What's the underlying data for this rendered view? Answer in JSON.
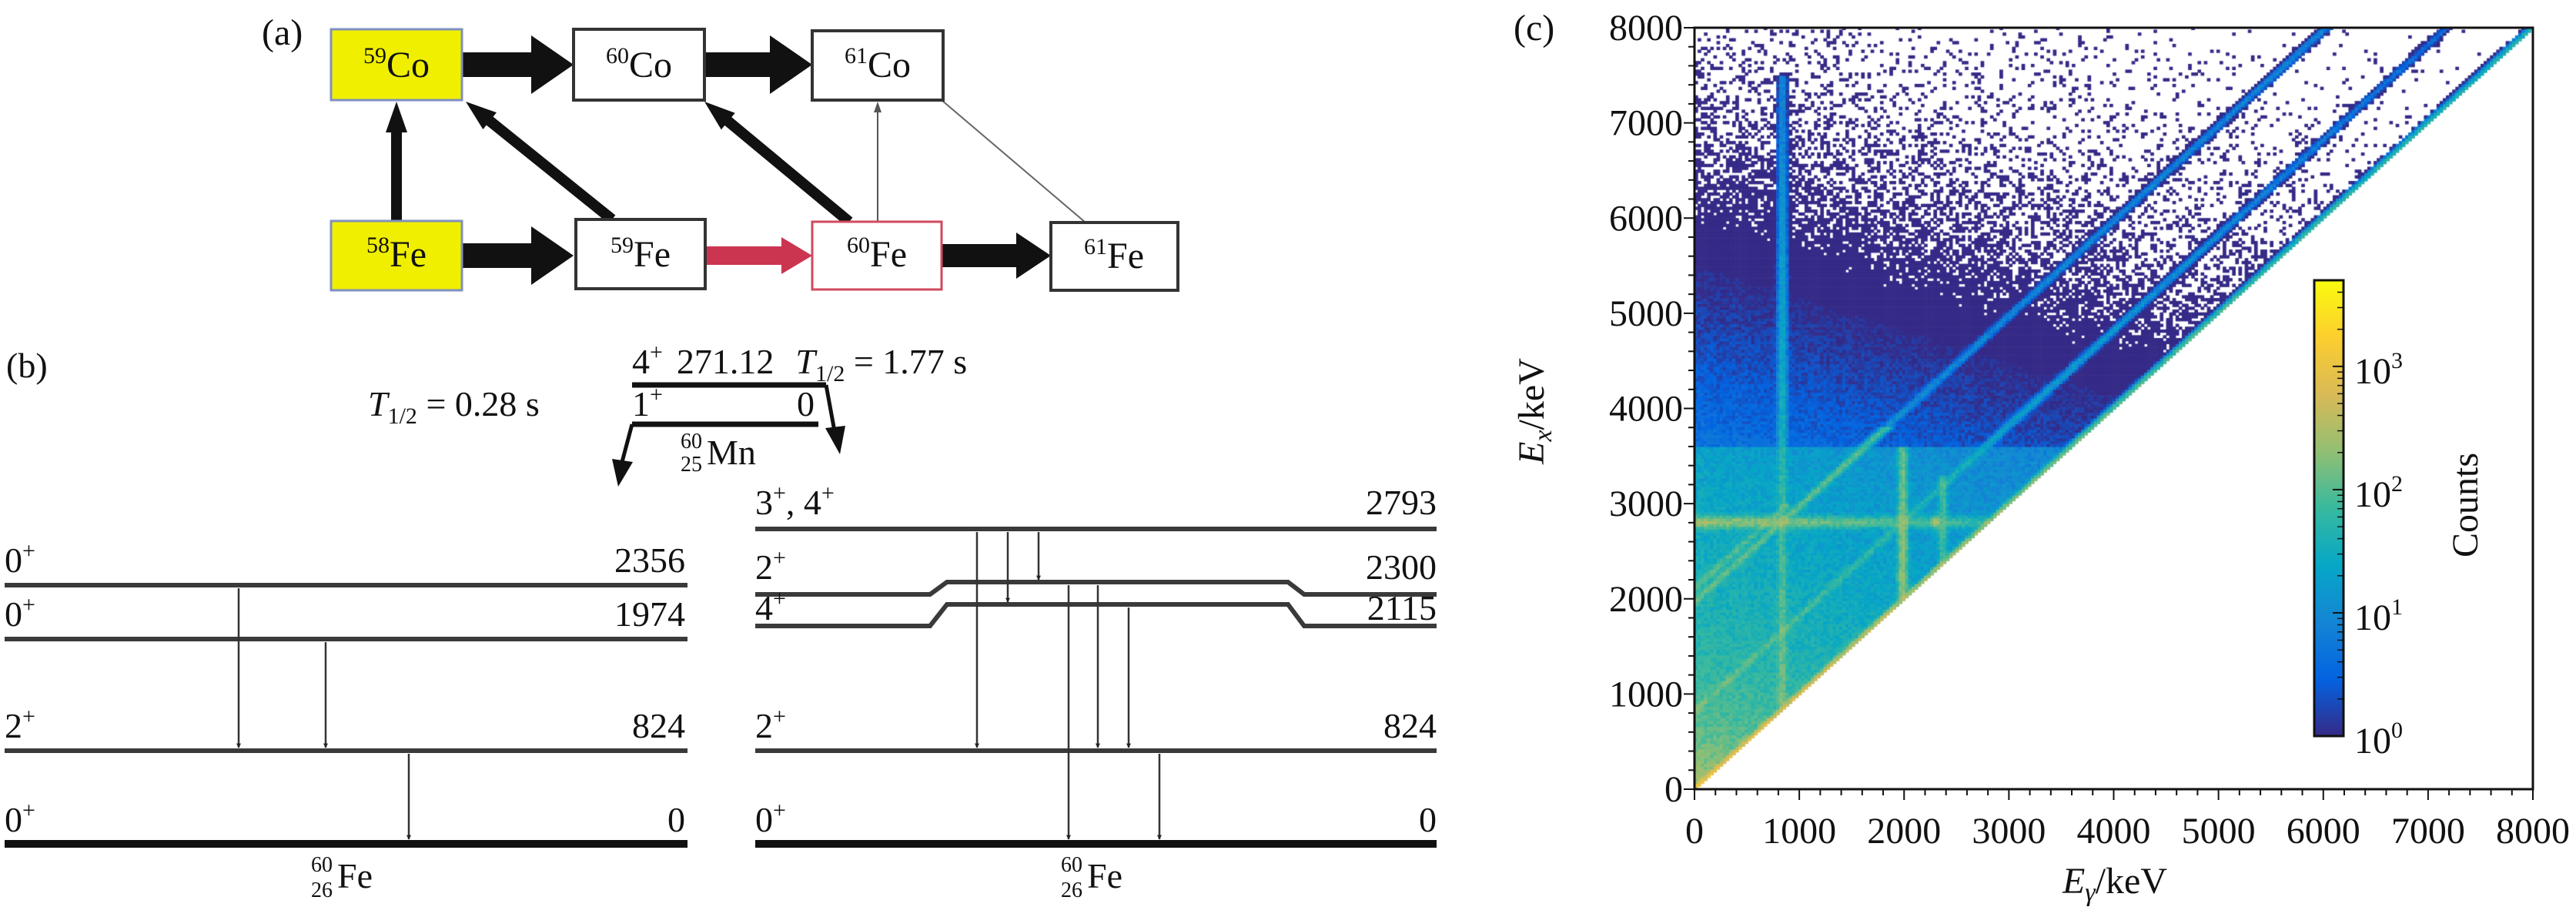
{
  "panel_a": {
    "label": "(a)",
    "colors": {
      "seed": "#f0ef00",
      "highlight_border": "#d04a5e",
      "red_arrow": "#cc3550",
      "arrow": "#111111"
    },
    "nuclides": {
      "co59": {
        "mass": "59",
        "symbol": "Co"
      },
      "co60": {
        "mass": "60",
        "symbol": "Co"
      },
      "co61": {
        "mass": "61",
        "symbol": "Co"
      },
      "fe58": {
        "mass": "58",
        "symbol": "Fe"
      },
      "fe59": {
        "mass": "59",
        "symbol": "Fe"
      },
      "fe60": {
        "mass": "60",
        "symbol": "Fe"
      },
      "fe61": {
        "mass": "61",
        "symbol": "Fe"
      }
    }
  },
  "panel_b": {
    "label": "(b)",
    "parent": {
      "upper": {
        "spin": "4",
        "parity": "+",
        "energy": "271.12",
        "t": "T",
        "t_sub": "1/2",
        "half_life": " = 1.77 s"
      },
      "lower": {
        "spin": "1",
        "parity": "+",
        "energy": "0",
        "t": "T",
        "t_sub": "1/2",
        "half_life": " = 0.28 s"
      },
      "nucleus": {
        "mass": "60",
        "z": "25",
        "symbol": "Mn"
      }
    },
    "left_scheme": {
      "levels": [
        {
          "spin": "0",
          "parity": "+",
          "energy": "2356"
        },
        {
          "spin": "0",
          "parity": "+",
          "energy": "1974"
        },
        {
          "spin": "2",
          "parity": "+",
          "energy": "824"
        },
        {
          "spin": "0",
          "parity": "+",
          "energy": "0"
        }
      ],
      "nucleus": {
        "mass": "60",
        "z": "26",
        "symbol": "Fe"
      }
    },
    "right_scheme": {
      "levels": [
        {
          "spin": "3",
          "parity": "+",
          "spin2": ", 4",
          "parity2": "+",
          "energy": "2793"
        },
        {
          "spin": "2",
          "parity": "+",
          "energy": "2300"
        },
        {
          "spin": "4",
          "parity": "+",
          "energy": "2115"
        },
        {
          "spin": "2",
          "parity": "+",
          "energy": "824"
        },
        {
          "spin": "0",
          "parity": "+",
          "energy": "0"
        }
      ],
      "nucleus": {
        "mass": "60",
        "z": "26",
        "symbol": "Fe"
      }
    }
  },
  "chart_data": {
    "type": "heatmap",
    "panel_label": "(c)",
    "xlabel": {
      "main": "E",
      "sub": "γ",
      "unit": "/keV"
    },
    "ylabel": {
      "main": "E",
      "sub": "x",
      "unit": "/keV"
    },
    "xlim": [
      0,
      8000
    ],
    "ylim": [
      0,
      8000
    ],
    "xticks": [
      "0",
      "1000",
      "2000",
      "3000",
      "4000",
      "5000",
      "6000",
      "7000",
      "8000"
    ],
    "yticks": [
      "0",
      "1000",
      "2000",
      "3000",
      "4000",
      "5000",
      "6000",
      "7000",
      "8000"
    ],
    "colorbar": {
      "label": "Counts",
      "scale": "log",
      "range": [
        1,
        5000
      ],
      "ticks": [
        {
          "base": "10",
          "exp": "0"
        },
        {
          "base": "10",
          "exp": "1"
        },
        {
          "base": "10",
          "exp": "2"
        },
        {
          "base": "10",
          "exp": "3"
        }
      ],
      "colormap": [
        "#352A87",
        "#0363E1",
        "#1485D4",
        "#06A7C6",
        "#38B99E",
        "#92BF73",
        "#D9BA56",
        "#FCCE2E",
        "#F9FB0E"
      ]
    },
    "grid": false
  }
}
